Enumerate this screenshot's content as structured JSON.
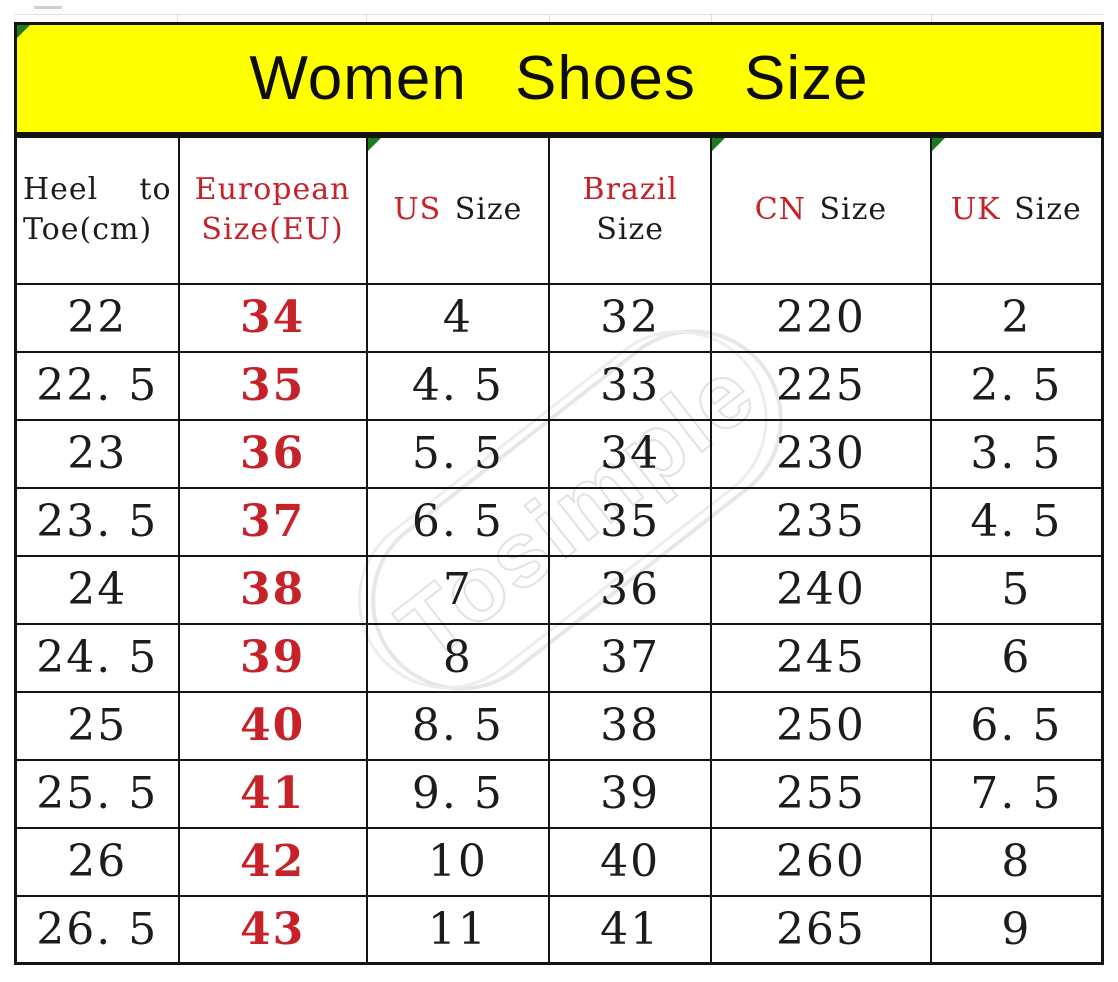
{
  "title": {
    "text": "Women Shoes Size"
  },
  "watermark": {
    "text": "Tosimple"
  },
  "colors": {
    "banner_bg": "#ffff00",
    "accent_red": "#c5222a",
    "header_red": "#cc2222",
    "marker_green": "#1e7a1e",
    "text_black": "#1c1c1c",
    "watermark_gray": "#e2e2e2"
  },
  "table": {
    "header": {
      "heel": {
        "word1": "Heel",
        "word2": "to",
        "line2": "Toe(cm)"
      },
      "eu": {
        "line1": "European",
        "line2": "Size(EU)"
      },
      "us": {
        "code": "US",
        "label": "Size"
      },
      "brazil": {
        "code": "Brazil",
        "label": "Size"
      },
      "cn": {
        "code": "CN",
        "label": "Size"
      },
      "uk": {
        "code": "UK",
        "label": "Size"
      }
    },
    "rows": [
      [
        "22",
        "34",
        "4",
        "32",
        "220",
        "2"
      ],
      [
        "22. 5",
        "35",
        "4. 5",
        "33",
        "225",
        "2. 5"
      ],
      [
        "23",
        "36",
        "5. 5",
        "34",
        "230",
        "3. 5"
      ],
      [
        "23. 5",
        "37",
        "6. 5",
        "35",
        "235",
        "4. 5"
      ],
      [
        "24",
        "38",
        "7",
        "36",
        "240",
        "5"
      ],
      [
        "24. 5",
        "39",
        "8",
        "37",
        "245",
        "6"
      ],
      [
        "25",
        "40",
        "8. 5",
        "38",
        "250",
        "6. 5"
      ],
      [
        "25. 5",
        "41",
        "9. 5",
        "39",
        "255",
        "7. 5"
      ],
      [
        "26",
        "42",
        "10",
        "40",
        "260",
        "8"
      ],
      [
        "26. 5",
        "43",
        "11",
        "41",
        "265",
        "9"
      ]
    ]
  },
  "chart_data": {
    "type": "table",
    "title": "Women Shoes Size",
    "columns": [
      "Heel to Toe(cm)",
      "European Size(EU)",
      "US Size",
      "Brazil Size",
      "CN Size",
      "UK Size"
    ],
    "rows": [
      [
        22,
        34,
        4,
        32,
        220,
        2
      ],
      [
        22.5,
        35,
        4.5,
        33,
        225,
        2.5
      ],
      [
        23,
        36,
        5.5,
        34,
        230,
        3.5
      ],
      [
        23.5,
        37,
        6.5,
        35,
        235,
        4.5
      ],
      [
        24,
        38,
        7,
        36,
        240,
        5
      ],
      [
        24.5,
        39,
        8,
        37,
        245,
        6
      ],
      [
        25,
        40,
        8.5,
        38,
        250,
        6.5
      ],
      [
        25.5,
        41,
        9.5,
        39,
        255,
        7.5
      ],
      [
        26,
        42,
        10,
        40,
        260,
        8
      ],
      [
        26.5,
        43,
        11,
        41,
        265,
        9
      ]
    ]
  }
}
